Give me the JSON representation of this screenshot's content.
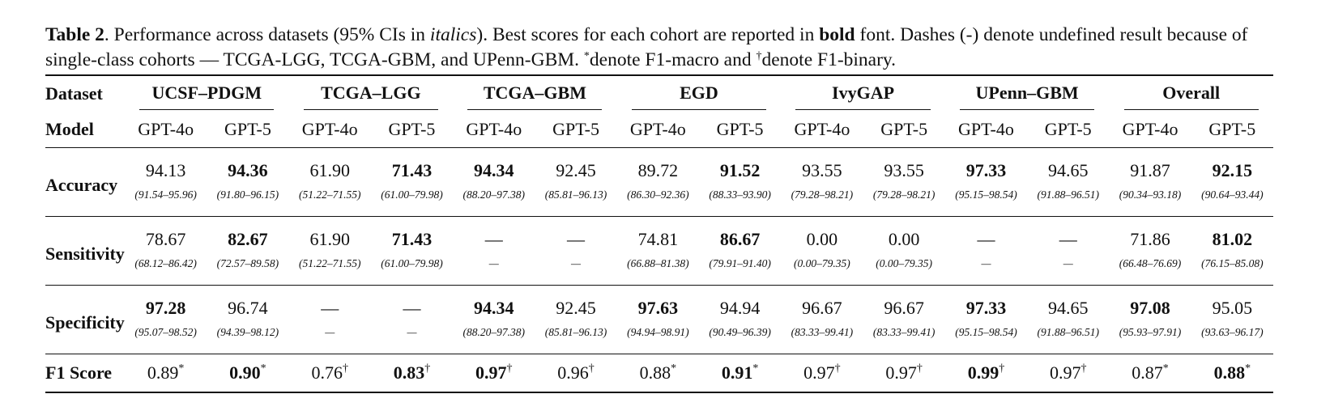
{
  "caption": {
    "label": "Table 2",
    "t1": ". Performance across datasets (95% CIs in ",
    "italic": "italics",
    "t2": "). Best scores for each cohort are reported in ",
    "bold": "bold",
    "t3": " font. Dashes (-) denote undefined result because of single-class cohorts — TCGA-LGG, TCGA-GBM, and UPenn-GBM. ",
    "star": "*",
    "t4": "denote F1-macro and ",
    "dagger": "†",
    "t5": "denote F1-binary."
  },
  "header": {
    "dataset_label": "Dataset",
    "model_label": "Model",
    "datasets": [
      "UCSF–PDGM",
      "TCGA–LGG",
      "TCGA–GBM",
      "EGD",
      "IvyGAP",
      "UPenn–GBM",
      "Overall"
    ],
    "models": [
      "GPT-4o",
      "GPT-5",
      "GPT-4o",
      "GPT-5",
      "GPT-4o",
      "GPT-5",
      "GPT-4o",
      "GPT-5",
      "GPT-4o",
      "GPT-5",
      "GPT-4o",
      "GPT-5",
      "GPT-4o",
      "GPT-5"
    ]
  },
  "rows": {
    "accuracy": {
      "label": "Accuracy",
      "values": [
        "94.13",
        "94.36",
        "61.90",
        "71.43",
        "94.34",
        "92.45",
        "89.72",
        "91.52",
        "93.55",
        "93.55",
        "97.33",
        "94.65",
        "91.87",
        "92.15"
      ],
      "cis": [
        "(91.54–95.96)",
        "(91.80–96.15)",
        "(51.22–71.55)",
        "(61.00–79.98)",
        "(88.20–97.38)",
        "(85.81–96.13)",
        "(86.30–92.36)",
        "(88.33–93.90)",
        "(79.28–98.21)",
        "(79.28–98.21)",
        "(95.15–98.54)",
        "(91.88–96.51)",
        "(90.34–93.18)",
        "(90.64–93.44)"
      ],
      "bold": [
        false,
        true,
        false,
        true,
        true,
        false,
        false,
        true,
        false,
        false,
        true,
        false,
        false,
        true
      ]
    },
    "sensitivity": {
      "label": "Sensitivity",
      "values": [
        "78.67",
        "82.67",
        "61.90",
        "71.43",
        "—",
        "—",
        "74.81",
        "86.67",
        "0.00",
        "0.00",
        "—",
        "—",
        "71.86",
        "81.02"
      ],
      "cis": [
        "(68.12–86.42)",
        "(72.57–89.58)",
        "(51.22–71.55)",
        "(61.00–79.98)",
        "—",
        "—",
        "(66.88–81.38)",
        "(79.91–91.40)",
        "(0.00–79.35)",
        "(0.00–79.35)",
        "—",
        "—",
        "(66.48–76.69)",
        "(76.15–85.08)"
      ],
      "bold": [
        false,
        true,
        false,
        true,
        false,
        false,
        false,
        true,
        false,
        false,
        false,
        false,
        false,
        true
      ]
    },
    "specificity": {
      "label": "Specificity",
      "values": [
        "97.28",
        "96.74",
        "—",
        "—",
        "94.34",
        "92.45",
        "97.63",
        "94.94",
        "96.67",
        "96.67",
        "97.33",
        "94.65",
        "97.08",
        "95.05"
      ],
      "cis": [
        "(95.07–98.52)",
        "(94.39–98.12)",
        "—",
        "—",
        "(88.20–97.38)",
        "(85.81–96.13)",
        "(94.94–98.91)",
        "(90.49–96.39)",
        "(83.33–99.41)",
        "(83.33–99.41)",
        "(95.15–98.54)",
        "(91.88–96.51)",
        "(95.93–97.91)",
        "(93.63–96.17)"
      ],
      "bold": [
        true,
        false,
        false,
        false,
        true,
        false,
        true,
        false,
        false,
        false,
        true,
        false,
        true,
        false
      ]
    },
    "f1": {
      "label": "F1 Score",
      "values": [
        "0.89",
        "0.90",
        "0.76",
        "0.83",
        "0.97",
        "0.96",
        "0.88",
        "0.91",
        "0.97",
        "0.97",
        "0.99",
        "0.97",
        "0.87",
        "0.88"
      ],
      "marks": [
        "*",
        "*",
        "†",
        "†",
        "†",
        "†",
        "*",
        "*",
        "†",
        "†",
        "†",
        "†",
        "*",
        "*"
      ],
      "bold": [
        false,
        true,
        false,
        true,
        true,
        false,
        false,
        true,
        false,
        false,
        true,
        false,
        false,
        true
      ]
    }
  }
}
